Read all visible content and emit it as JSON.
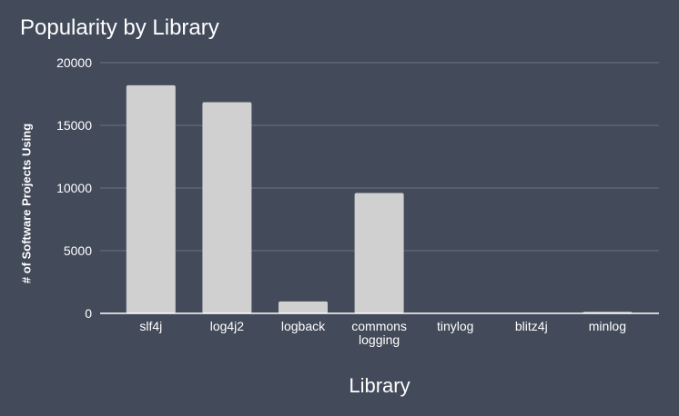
{
  "chart_data": {
    "type": "bar",
    "title": "Popularity by Library",
    "xlabel": "Library",
    "ylabel": "# of Software Projects Using",
    "categories": [
      [
        "slf4j"
      ],
      [
        "log4j2"
      ],
      [
        "logback"
      ],
      [
        "commons",
        "logging"
      ],
      [
        "tinylog"
      ],
      [
        "blitz4j"
      ],
      [
        "minlog"
      ]
    ],
    "values": [
      18200,
      16850,
      950,
      9600,
      20,
      10,
      120
    ],
    "ylim": [
      0,
      20000
    ],
    "yticks": [
      0,
      5000,
      10000,
      15000,
      20000
    ],
    "grid": true,
    "colors": {
      "background": "#434a5a",
      "bar": "#d0d0d0",
      "grid": "#6b7282",
      "axis": "#ffffff",
      "text": "#ffffff"
    }
  }
}
